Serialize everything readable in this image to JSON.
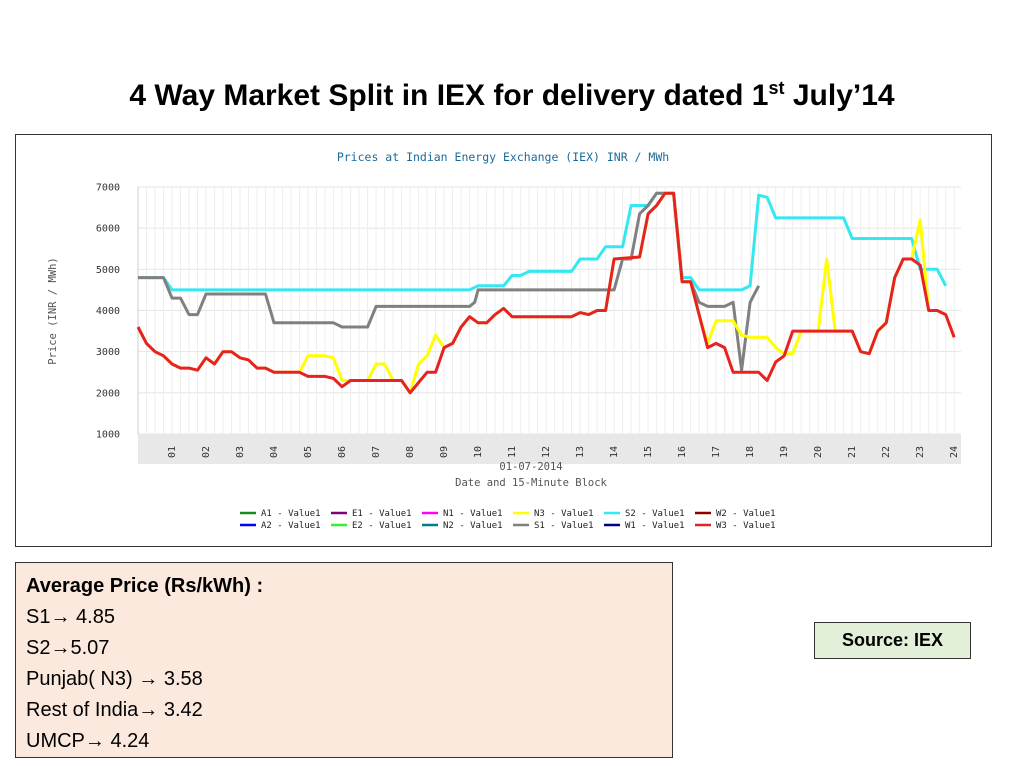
{
  "slide": {
    "title": "4 Way Market Split in IEX for delivery dated 1",
    "title_sup": "st",
    "title_end": " July’14"
  },
  "info": {
    "heading": "Average Price (Rs/kWh) :",
    "lines": [
      "S1→ 4.85",
      "S2→5.07",
      "Punjab( N3) → 3.58",
      "Rest of  India→ 3.42",
      "UMCP→ 4.24"
    ]
  },
  "source": "Source: IEX",
  "chart_data": {
    "type": "line",
    "title": "Prices at Indian Energy Exchange (IEX) INR / MWh",
    "xlabel": "Date and 15-Minute Block",
    "x_sublabel": "01-07-2014",
    "ylabel": "Price (INR / MWh)",
    "ylim": [
      1000,
      7000
    ],
    "yticks": [
      1000,
      2000,
      3000,
      4000,
      5000,
      6000,
      7000
    ],
    "xlim": [
      0,
      24.2
    ],
    "xticks": [
      "01",
      "02",
      "03",
      "04",
      "05",
      "06",
      "07",
      "08",
      "09",
      "10",
      "11",
      "12",
      "13",
      "14",
      "15",
      "16",
      "17",
      "18",
      "19",
      "20",
      "21",
      "22",
      "23",
      "24"
    ],
    "grid": true,
    "legend_position": "bottom",
    "legend": [
      {
        "name": "A1 - Value1",
        "color": "#1a8a1a"
      },
      {
        "name": "E1 - Value1",
        "color": "#800080"
      },
      {
        "name": "N1 - Value1",
        "color": "#ff00ff"
      },
      {
        "name": "N3 - Value1",
        "color": "#ffff00"
      },
      {
        "name": "S2 - Value1",
        "color": "#33e8f0"
      },
      {
        "name": "W2 - Value1",
        "color": "#8b0000"
      },
      {
        "name": "A2 - Value1",
        "color": "#0000ff"
      },
      {
        "name": "E2 - Value1",
        "color": "#33ee33"
      },
      {
        "name": "N2 - Value1",
        "color": "#008080"
      },
      {
        "name": "S1 - Value1",
        "color": "#808080"
      },
      {
        "name": "W1 - Value1",
        "color": "#00008b"
      },
      {
        "name": "W3 - Value1",
        "color": "#e62222"
      }
    ],
    "series": [
      {
        "name": "S2 - Value1",
        "color": "#33e8f0",
        "points": [
          [
            0,
            4800
          ],
          [
            0.75,
            4800
          ],
          [
            1,
            4500
          ],
          [
            9.75,
            4500
          ],
          [
            10,
            4600
          ],
          [
            10.75,
            4600
          ],
          [
            11,
            4850
          ],
          [
            11.25,
            4850
          ],
          [
            11.5,
            4950
          ],
          [
            12.75,
            4950
          ],
          [
            13,
            5250
          ],
          [
            13.5,
            5250
          ],
          [
            13.75,
            5550
          ],
          [
            14.25,
            5550
          ],
          [
            14.5,
            6550
          ],
          [
            15,
            6550
          ],
          [
            15.25,
            6850
          ],
          [
            15.75,
            6850
          ],
          [
            16,
            4800
          ],
          [
            16.25,
            4800
          ],
          [
            16.5,
            4500
          ],
          [
            17.75,
            4500
          ],
          [
            18,
            4600
          ],
          [
            18.25,
            6800
          ],
          [
            18.5,
            6750
          ],
          [
            18.75,
            6250
          ],
          [
            20.75,
            6250
          ],
          [
            21,
            5750
          ],
          [
            22.75,
            5750
          ],
          [
            23,
            5000
          ],
          [
            23.5,
            5000
          ],
          [
            23.75,
            4600
          ]
        ]
      },
      {
        "name": "S1 - Value1",
        "color": "#808080",
        "points": [
          [
            0,
            4800
          ],
          [
            0.75,
            4800
          ],
          [
            1,
            4300
          ],
          [
            1.25,
            4300
          ],
          [
            1.5,
            3900
          ],
          [
            1.75,
            3900
          ],
          [
            2,
            4400
          ],
          [
            3.75,
            4400
          ],
          [
            4,
            3700
          ],
          [
            5.75,
            3700
          ],
          [
            6,
            3600
          ],
          [
            6.75,
            3600
          ],
          [
            7,
            4100
          ],
          [
            9.75,
            4100
          ],
          [
            9.9,
            4200
          ],
          [
            10,
            4500
          ],
          [
            14,
            4500
          ],
          [
            14.25,
            5250
          ],
          [
            14.5,
            5250
          ],
          [
            14.75,
            6350
          ],
          [
            15,
            6550
          ],
          [
            15.25,
            6850
          ],
          [
            15.75,
            6850
          ],
          [
            16,
            4700
          ],
          [
            16.25,
            4700
          ],
          [
            16.5,
            4200
          ],
          [
            16.75,
            4100
          ],
          [
            17.25,
            4100
          ],
          [
            17.5,
            4200
          ],
          [
            17.75,
            2550
          ],
          [
            18,
            4200
          ],
          [
            18.25,
            4600
          ]
        ]
      },
      {
        "name": "N3 - Value1",
        "color": "#ffff00",
        "points": [
          [
            0,
            3600
          ],
          [
            0.25,
            3200
          ],
          [
            0.5,
            3000
          ],
          [
            0.75,
            2900
          ],
          [
            1,
            2700
          ],
          [
            1.25,
            2600
          ],
          [
            1.5,
            2600
          ],
          [
            1.75,
            2550
          ],
          [
            2,
            2850
          ],
          [
            2.25,
            2700
          ],
          [
            2.5,
            3000
          ],
          [
            2.75,
            3000
          ],
          [
            3,
            2850
          ],
          [
            3.25,
            2800
          ],
          [
            3.5,
            2600
          ],
          [
            3.75,
            2600
          ],
          [
            4,
            2500
          ],
          [
            4.75,
            2500
          ],
          [
            5,
            2900
          ],
          [
            5.5,
            2900
          ],
          [
            5.75,
            2850
          ],
          [
            6,
            2300
          ],
          [
            6.75,
            2300
          ],
          [
            7,
            2700
          ],
          [
            7.25,
            2700
          ],
          [
            7.5,
            2300
          ],
          [
            7.75,
            2300
          ],
          [
            8,
            2000
          ],
          [
            8.25,
            2700
          ],
          [
            8.5,
            2900
          ],
          [
            8.75,
            3400
          ],
          [
            9,
            3100
          ],
          [
            9.25,
            3200
          ],
          [
            9.5,
            3600
          ],
          [
            9.75,
            3850
          ],
          [
            10,
            3700
          ],
          [
            10.25,
            3700
          ],
          [
            10.5,
            3900
          ],
          [
            10.75,
            4050
          ],
          [
            11,
            3850
          ],
          [
            12.75,
            3850
          ],
          [
            13,
            3950
          ],
          [
            13.25,
            3900
          ],
          [
            13.5,
            4000
          ],
          [
            13.75,
            4000
          ],
          [
            14,
            5250
          ],
          [
            14.75,
            5300
          ],
          [
            15,
            6350
          ],
          [
            15.25,
            6550
          ],
          [
            15.5,
            6850
          ],
          [
            15.75,
            6850
          ],
          [
            16,
            4700
          ],
          [
            16.25,
            4700
          ],
          [
            16.5,
            3900
          ],
          [
            16.75,
            3200
          ],
          [
            17,
            3750
          ],
          [
            17.5,
            3750
          ],
          [
            17.75,
            3400
          ],
          [
            18,
            3350
          ],
          [
            18.5,
            3350
          ],
          [
            18.75,
            3100
          ],
          [
            19,
            2950
          ],
          [
            19.25,
            2950
          ],
          [
            19.5,
            3500
          ],
          [
            20,
            3500
          ],
          [
            20.25,
            5250
          ],
          [
            20.5,
            3500
          ],
          [
            21,
            3500
          ],
          [
            21.25,
            3000
          ],
          [
            21.5,
            2950
          ],
          [
            21.75,
            3500
          ],
          [
            22,
            3700
          ],
          [
            22.25,
            4800
          ],
          [
            22.5,
            5250
          ],
          [
            22.75,
            5250
          ],
          [
            23,
            6200
          ],
          [
            23.25,
            4000
          ],
          [
            23.5,
            4000
          ],
          [
            23.75,
            3900
          ],
          [
            24,
            3350
          ]
        ]
      },
      {
        "name": "W3 - Value1",
        "color": "#e62222",
        "points": [
          [
            0,
            3600
          ],
          [
            0.25,
            3200
          ],
          [
            0.5,
            3000
          ],
          [
            0.75,
            2900
          ],
          [
            1,
            2700
          ],
          [
            1.25,
            2600
          ],
          [
            1.5,
            2600
          ],
          [
            1.75,
            2550
          ],
          [
            2,
            2850
          ],
          [
            2.25,
            2700
          ],
          [
            2.5,
            3000
          ],
          [
            2.75,
            3000
          ],
          [
            3,
            2850
          ],
          [
            3.25,
            2800
          ],
          [
            3.5,
            2600
          ],
          [
            3.75,
            2600
          ],
          [
            4,
            2500
          ],
          [
            4.75,
            2500
          ],
          [
            5,
            2400
          ],
          [
            5.5,
            2400
          ],
          [
            5.75,
            2350
          ],
          [
            6,
            2150
          ],
          [
            6.25,
            2300
          ],
          [
            7.5,
            2300
          ],
          [
            7.75,
            2300
          ],
          [
            8,
            2000
          ],
          [
            8.25,
            2250
          ],
          [
            8.5,
            2500
          ],
          [
            8.75,
            2500
          ],
          [
            9,
            3100
          ],
          [
            9.25,
            3200
          ],
          [
            9.5,
            3600
          ],
          [
            9.75,
            3850
          ],
          [
            10,
            3700
          ],
          [
            10.25,
            3700
          ],
          [
            10.5,
            3900
          ],
          [
            10.75,
            4050
          ],
          [
            11,
            3850
          ],
          [
            12.75,
            3850
          ],
          [
            13,
            3950
          ],
          [
            13.25,
            3900
          ],
          [
            13.5,
            4000
          ],
          [
            13.75,
            4000
          ],
          [
            14,
            5250
          ],
          [
            14.75,
            5300
          ],
          [
            15,
            6350
          ],
          [
            15.25,
            6550
          ],
          [
            15.5,
            6850
          ],
          [
            15.75,
            6850
          ],
          [
            16,
            4700
          ],
          [
            16.25,
            4700
          ],
          [
            16.5,
            3900
          ],
          [
            16.75,
            3100
          ],
          [
            17,
            3200
          ],
          [
            17.25,
            3100
          ],
          [
            17.5,
            2500
          ],
          [
            18.25,
            2500
          ],
          [
            18.5,
            2300
          ],
          [
            18.75,
            2750
          ],
          [
            19,
            2900
          ],
          [
            19.25,
            3500
          ],
          [
            21,
            3500
          ],
          [
            21.25,
            3000
          ],
          [
            21.5,
            2950
          ],
          [
            21.75,
            3500
          ],
          [
            22,
            3700
          ],
          [
            22.25,
            4800
          ],
          [
            22.5,
            5250
          ],
          [
            22.75,
            5250
          ],
          [
            23,
            5100
          ],
          [
            23.25,
            4000
          ],
          [
            23.5,
            4000
          ],
          [
            23.75,
            3900
          ],
          [
            24,
            3350
          ]
        ]
      }
    ]
  }
}
